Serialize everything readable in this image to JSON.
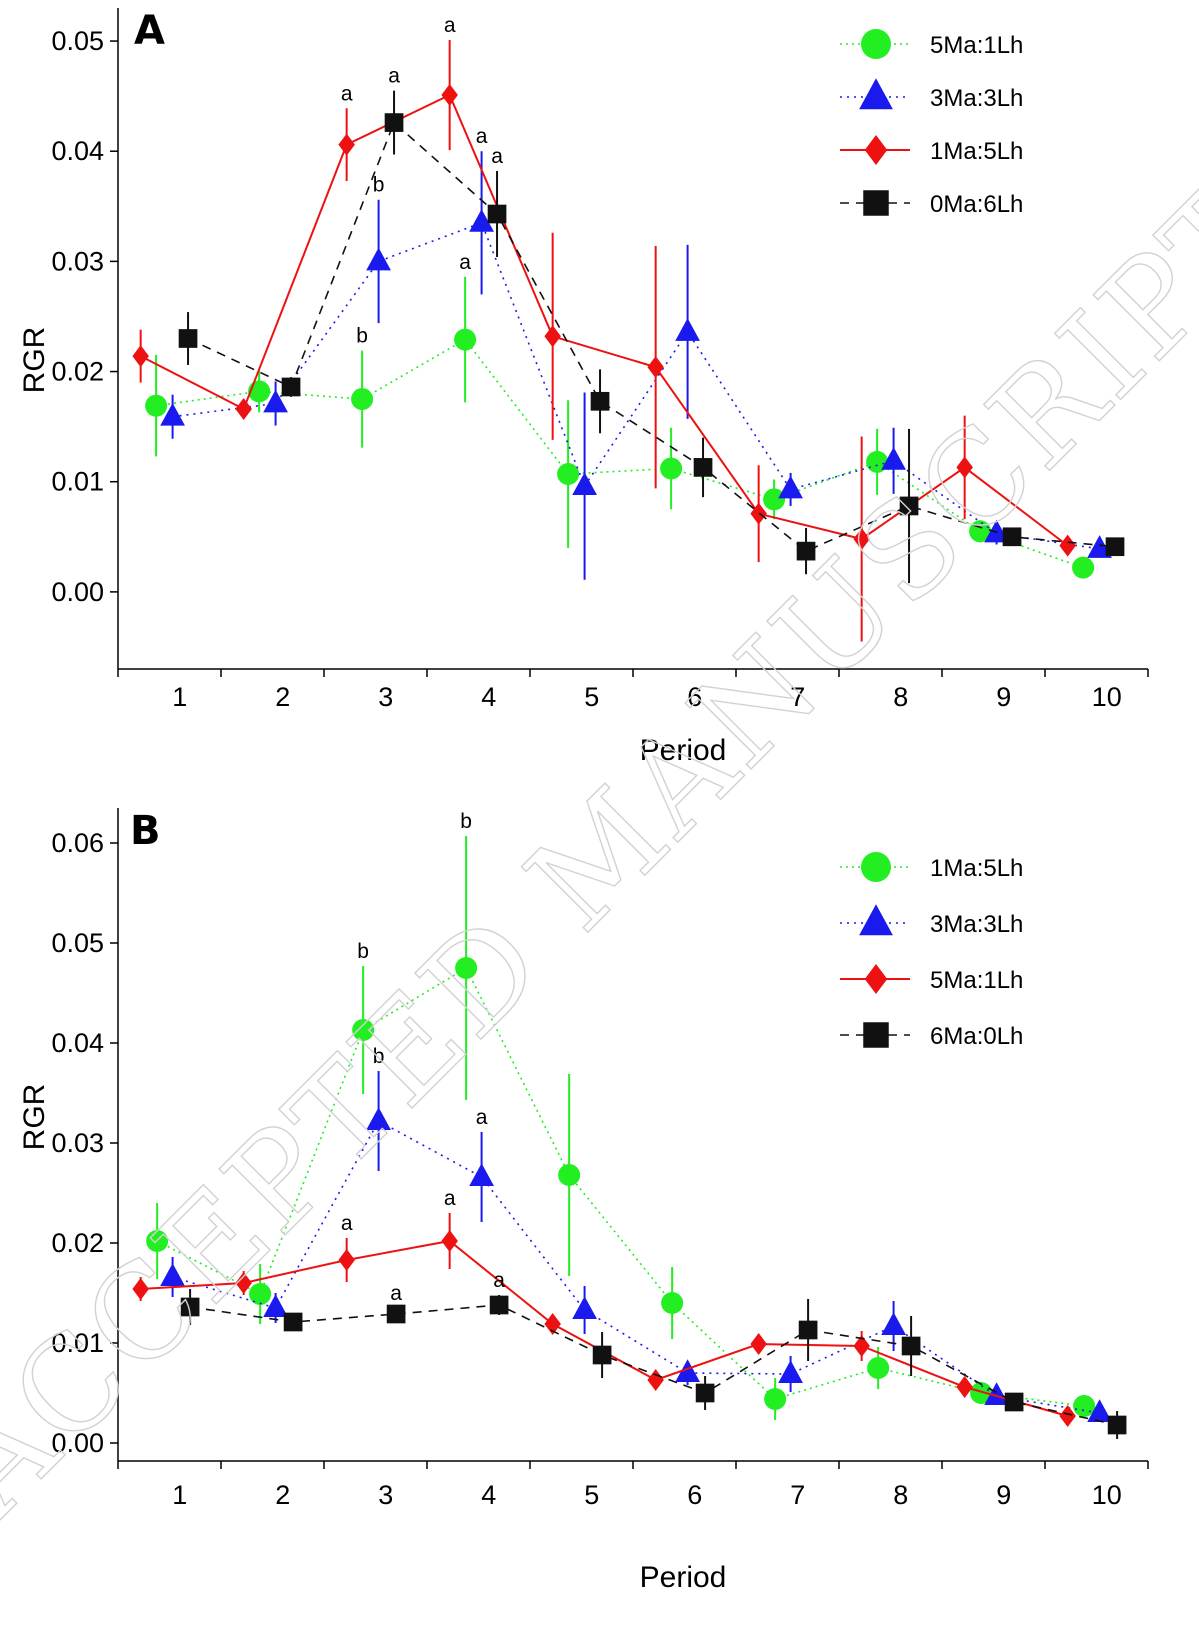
{
  "watermark": "ACCEPTED MANUSCRIPT",
  "colors": {
    "green": "#22ee22",
    "blue": "#1a1aee",
    "red": "#ee1111",
    "black": "#111111"
  },
  "chart_data": [
    {
      "type": "line",
      "panel_label": "A",
      "xlabel": "Period",
      "ylabel": "RGR",
      "categories": [
        "1",
        "2",
        "3",
        "4",
        "5",
        "6",
        "7",
        "8",
        "9",
        "10"
      ],
      "ylim": [
        -0.007,
        0.053
      ],
      "yticks": [
        0.0,
        0.01,
        0.02,
        0.03,
        0.04,
        0.05
      ],
      "ytick_labels": [
        "0.00",
        "0.01",
        "0.02",
        "0.03",
        "0.04",
        "0.05"
      ],
      "legend_position": "top-right",
      "series": [
        {
          "name": "5Ma:1Lh",
          "color": "#22ee22",
          "marker": "circle",
          "dash": "2,4",
          "offset": -0.13,
          "values": [
            0.0169,
            0.0182,
            0.0175,
            0.0229,
            0.0107,
            0.0112,
            0.0084,
            0.0118,
            0.0055,
            0.0022
          ],
          "errors": [
            0.0046,
            0.0019,
            0.0044,
            0.0057,
            0.0067,
            0.0037,
            0.0018,
            0.003,
            0.001,
            0.0006
          ]
        },
        {
          "name": "3Ma:3Lh",
          "color": "#1a1aee",
          "marker": "triangle",
          "dash": "2,5",
          "offset": 0.03,
          "values": [
            0.0159,
            0.0171,
            0.03,
            0.0335,
            0.0096,
            0.0236,
            0.0093,
            0.0119,
            0.0053,
            0.0039
          ],
          "errors": [
            0.002,
            0.002,
            0.0056,
            0.0065,
            0.0085,
            0.0079,
            0.0015,
            0.003,
            0.001,
            0.0006
          ]
        },
        {
          "name": "1Ma:5Lh",
          "color": "#ee1111",
          "marker": "diamond",
          "dash": "",
          "offset": -0.28,
          "values": [
            0.0214,
            0.0166,
            0.0406,
            0.0451,
            0.0232,
            0.0204,
            0.0071,
            0.0048,
            0.0113,
            0.0042
          ],
          "errors": [
            0.0024,
            0.0008,
            0.0033,
            0.005,
            0.0094,
            0.011,
            0.0044,
            0.0093,
            0.0047,
            0.0006
          ]
        },
        {
          "name": "0Ma:6Lh",
          "color": "#111111",
          "marker": "square",
          "dash": "9,7",
          "offset": 0.18,
          "values": [
            0.023,
            0.0186,
            0.0426,
            0.0343,
            0.0173,
            0.0113,
            0.0037,
            0.0078,
            0.005,
            0.0041
          ],
          "errors": [
            0.0024,
            0.0009,
            0.0029,
            0.0039,
            0.0029,
            0.0027,
            0.0021,
            0.007,
            0.0005,
            0.0005
          ]
        }
      ],
      "annotations": [
        {
          "text": "a",
          "x": 3,
          "series": "1Ma:5Lh"
        },
        {
          "text": "a",
          "x": 3,
          "series": "0Ma:6Lh"
        },
        {
          "text": "b",
          "x": 3,
          "series": "3Ma:3Lh"
        },
        {
          "text": "b",
          "x": 3,
          "series": "5Ma:1Lh"
        },
        {
          "text": "a",
          "x": 4,
          "series": "1Ma:5Lh"
        },
        {
          "text": "a",
          "x": 4,
          "series": "3Ma:3Lh"
        },
        {
          "text": "a",
          "x": 4,
          "series": "0Ma:6Lh"
        },
        {
          "text": "a",
          "x": 4,
          "series": "5Ma:1Lh"
        }
      ]
    },
    {
      "type": "line",
      "panel_label": "B",
      "xlabel": "Period",
      "ylabel": "RGR",
      "categories": [
        "1",
        "2",
        "3",
        "4",
        "5",
        "6",
        "7",
        "8",
        "9",
        "10"
      ],
      "ylim": [
        -0.0018,
        0.0635
      ],
      "yticks": [
        0.0,
        0.01,
        0.02,
        0.03,
        0.04,
        0.05,
        0.06
      ],
      "ytick_labels": [
        "0.00",
        "0.01",
        "0.02",
        "0.03",
        "0.04",
        "0.05",
        "0.06"
      ],
      "legend_position": "top-right",
      "series": [
        {
          "name": "1Ma:5Lh",
          "color": "#22ee22",
          "marker": "circle",
          "dash": "2,4",
          "offset": -0.12,
          "values": [
            0.0202,
            0.0149,
            0.0413,
            0.0475,
            0.0268,
            0.014,
            0.0044,
            0.0075,
            0.005,
            0.0037
          ],
          "errors": [
            0.0038,
            0.003,
            0.0064,
            0.0132,
            0.0101,
            0.0036,
            0.0021,
            0.0021,
            0.0008,
            0.0007
          ]
        },
        {
          "name": "3Ma:3Lh",
          "color": "#1a1aee",
          "marker": "triangle",
          "dash": "2,5",
          "offset": 0.03,
          "values": [
            0.0166,
            0.0135,
            0.0322,
            0.0266,
            0.0133,
            0.007,
            0.0069,
            0.0117,
            0.0047,
            0.003
          ],
          "errors": [
            0.002,
            0.0015,
            0.005,
            0.0045,
            0.0024,
            0.0012,
            0.0018,
            0.0025,
            0.0008,
            0.0007
          ]
        },
        {
          "name": "5Ma:1Lh",
          "color": "#ee1111",
          "marker": "diamond",
          "dash": "",
          "offset": -0.28,
          "values": [
            0.0154,
            0.016,
            0.0183,
            0.0202,
            0.0119,
            0.0063,
            0.0099,
            0.0097,
            0.0056,
            0.0027
          ],
          "errors": [
            0.0012,
            0.0012,
            0.0022,
            0.0028,
            0.0009,
            0.0006,
            0.0006,
            0.0015,
            0.0004,
            0.0003
          ]
        },
        {
          "name": "6Ma:0Lh",
          "color": "#111111",
          "marker": "square",
          "dash": "9,7",
          "offset": 0.2,
          "values": [
            0.0136,
            0.0121,
            0.0129,
            0.0138,
            0.0088,
            0.005,
            0.0113,
            0.0097,
            0.0041,
            0.0018
          ],
          "errors": [
            0.0018,
            0.0006,
            0.0006,
            0.001,
            0.0023,
            0.0017,
            0.0031,
            0.003,
            0.0006,
            0.0014
          ]
        }
      ],
      "annotations": [
        {
          "text": "b",
          "x": 3,
          "series": "1Ma:5Lh"
        },
        {
          "text": "b",
          "x": 3,
          "series": "3Ma:3Lh"
        },
        {
          "text": "a",
          "x": 3,
          "series": "5Ma:1Lh"
        },
        {
          "text": "a",
          "x": 3,
          "series": "6Ma:0Lh"
        },
        {
          "text": "b",
          "x": 4,
          "series": "1Ma:5Lh"
        },
        {
          "text": "a",
          "x": 4,
          "series": "3Ma:3Lh"
        },
        {
          "text": "a",
          "x": 4,
          "series": "5Ma:1Lh"
        },
        {
          "text": "a",
          "x": 4,
          "series": "6Ma:0Lh"
        }
      ]
    }
  ]
}
